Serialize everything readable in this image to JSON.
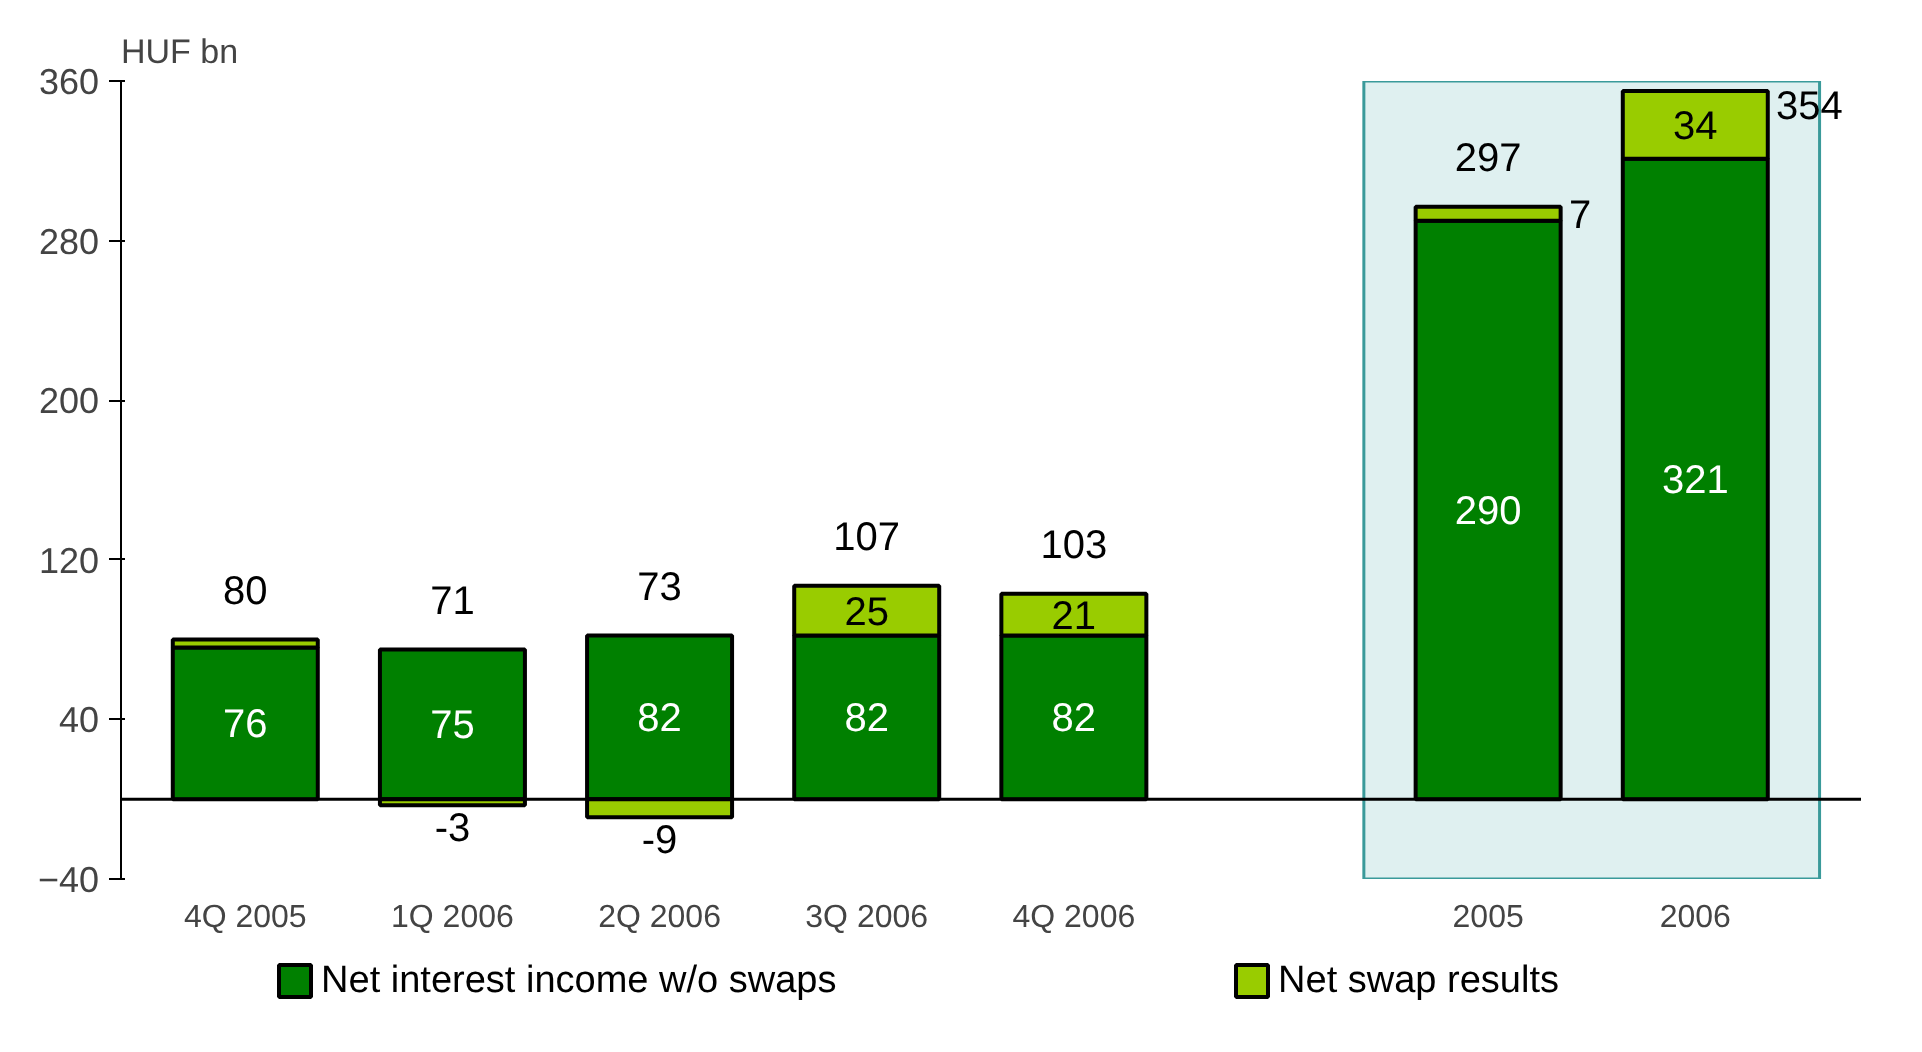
{
  "chart_data": {
    "type": "bar",
    "stacked": true,
    "ylabel": "HUF bn",
    "categories": [
      "4Q 2005",
      "1Q 2006",
      "2Q 2006",
      "3Q 2006",
      "4Q 2006",
      null,
      "2005",
      "2006"
    ],
    "series": [
      {
        "name": "Net interest income w/o swaps",
        "color": "#008000",
        "values": [
          76,
          75,
          82,
          82,
          82,
          null,
          290,
          321
        ],
        "value_labels": [
          "76",
          "75",
          "82",
          "82",
          "82",
          null,
          "290",
          "321"
        ]
      },
      {
        "name": "Net swap results",
        "color": "#99cc00",
        "values": [
          4,
          -3,
          -9,
          25,
          21,
          null,
          7,
          34
        ],
        "value_labels": [
          null,
          "-3",
          "-9",
          "25",
          "21",
          null,
          "7",
          "34"
        ]
      }
    ],
    "totals": [
      "80",
      "71",
      "73",
      "107",
      "103",
      null,
      "297",
      "354"
    ],
    "ylim": [
      -40,
      360
    ],
    "yticks": [
      -40,
      40,
      120,
      200,
      280,
      360
    ],
    "bands": [
      {
        "axis": "x",
        "from": "2005",
        "to": "2006",
        "color": "#dff0f0"
      }
    ],
    "grid": false,
    "legend": "bottom"
  }
}
